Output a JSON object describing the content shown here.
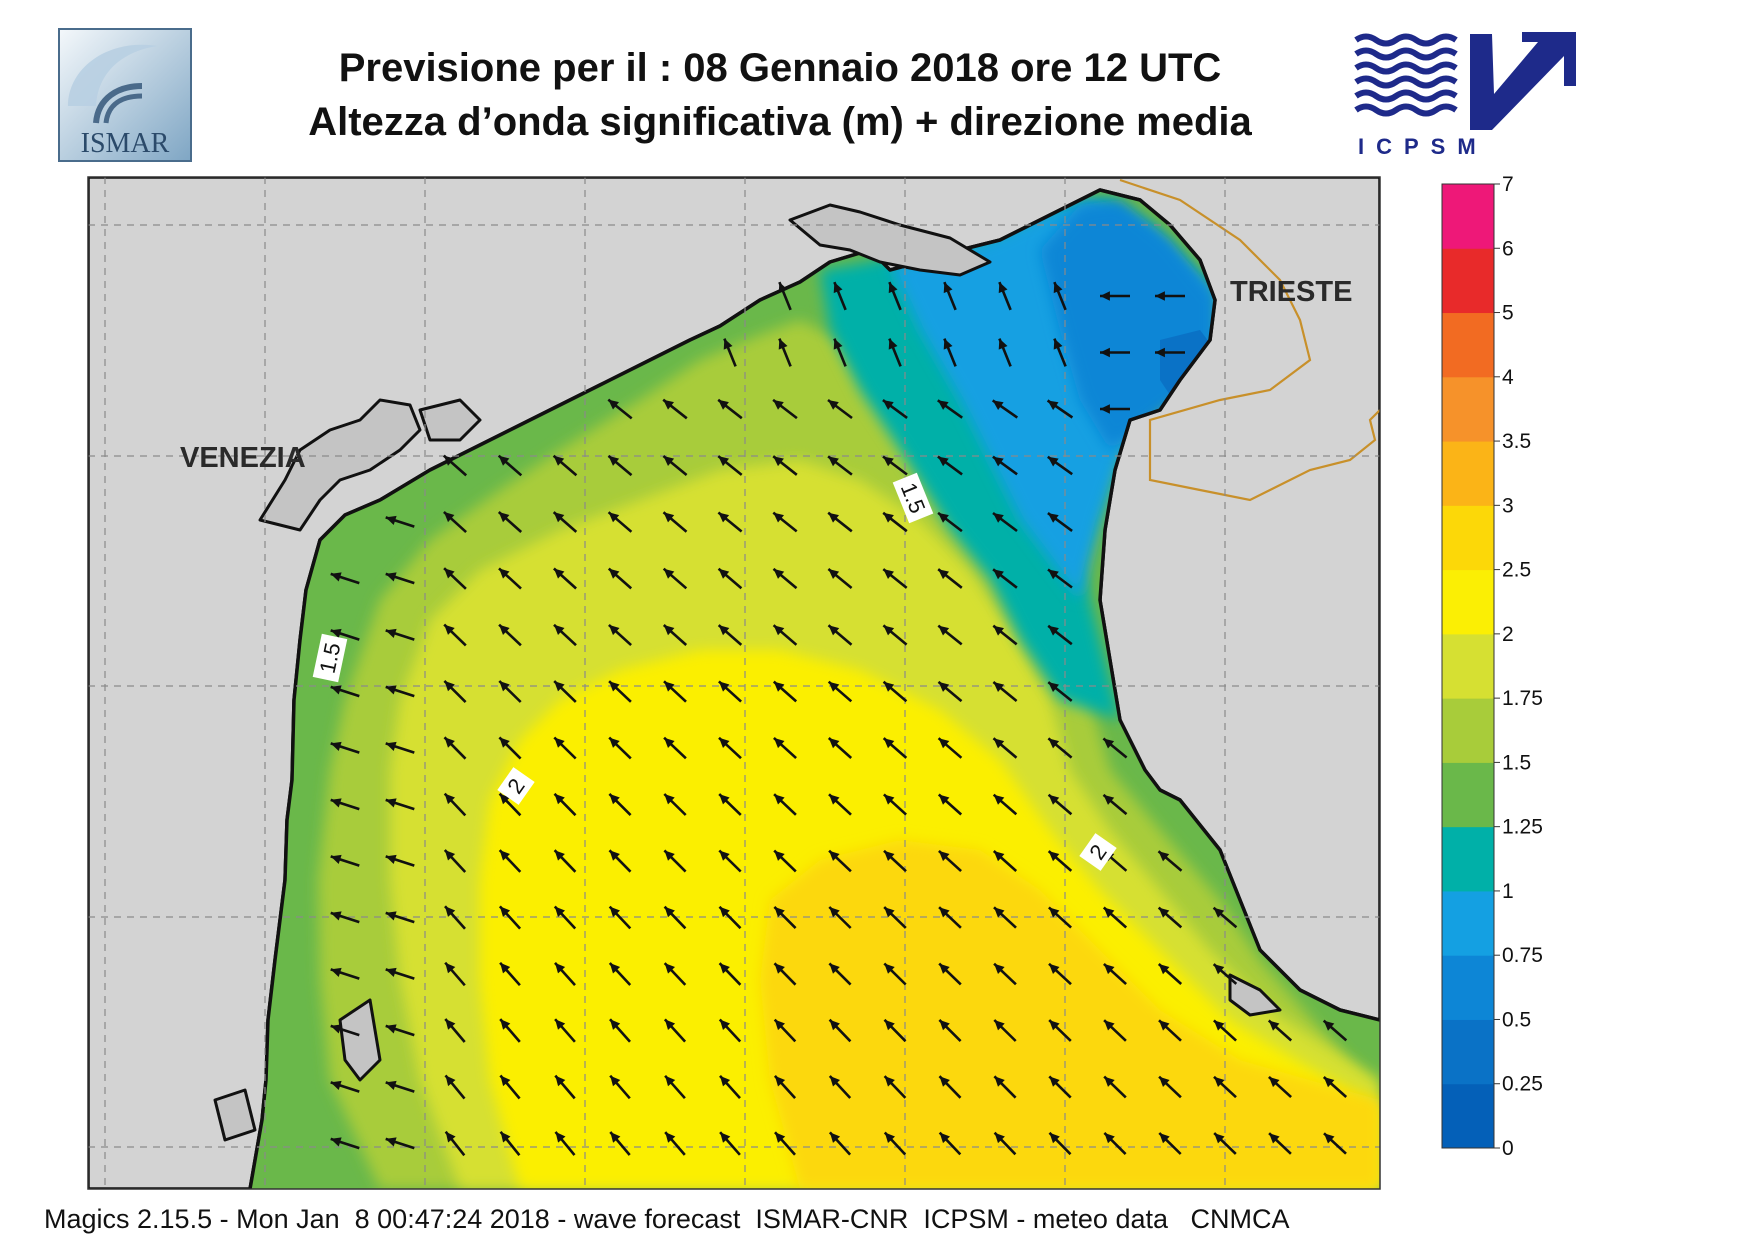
{
  "header": {
    "title_line1": "Previsione per il  :  08  Gennaio  2018   ore 12 UTC",
    "title_line2": "Altezza d’onda significativa (m) + direzione media"
  },
  "logos": {
    "left": "ISMAR",
    "right": "ICPSM"
  },
  "map": {
    "cities": [
      "VENEZIA",
      "TRIESTE"
    ],
    "contour_labels": [
      "1.5",
      "1.5",
      "2",
      "2"
    ],
    "colors": {
      "land": "#d3d3d3",
      "coast": "#111111",
      "border": "#c8902a"
    }
  },
  "colorbar": {
    "levels": [
      "0",
      "0.25",
      "0.5",
      "0.75",
      "1",
      "1.25",
      "1.5",
      "1.75",
      "2",
      "2.5",
      "3",
      "3.5",
      "4",
      "5",
      "6",
      "7"
    ],
    "colors": [
      "#0460b8",
      "#0a72c6",
      "#0d86d6",
      "#14a0e2",
      "#00b0a8",
      "#6ab84a",
      "#a8cc3a",
      "#d6e032",
      "#fbef04",
      "#fcd808",
      "#fbb417",
      "#f6922a",
      "#f26b22",
      "#e82a2a",
      "#ee1878"
    ]
  },
  "footer": {
    "text": "Magics 2.15.5 - Mon Jan  8 00:47:24 2018 - wave forecast  ISMAR-CNR  ICPSM - meteo data   CNMCA"
  }
}
